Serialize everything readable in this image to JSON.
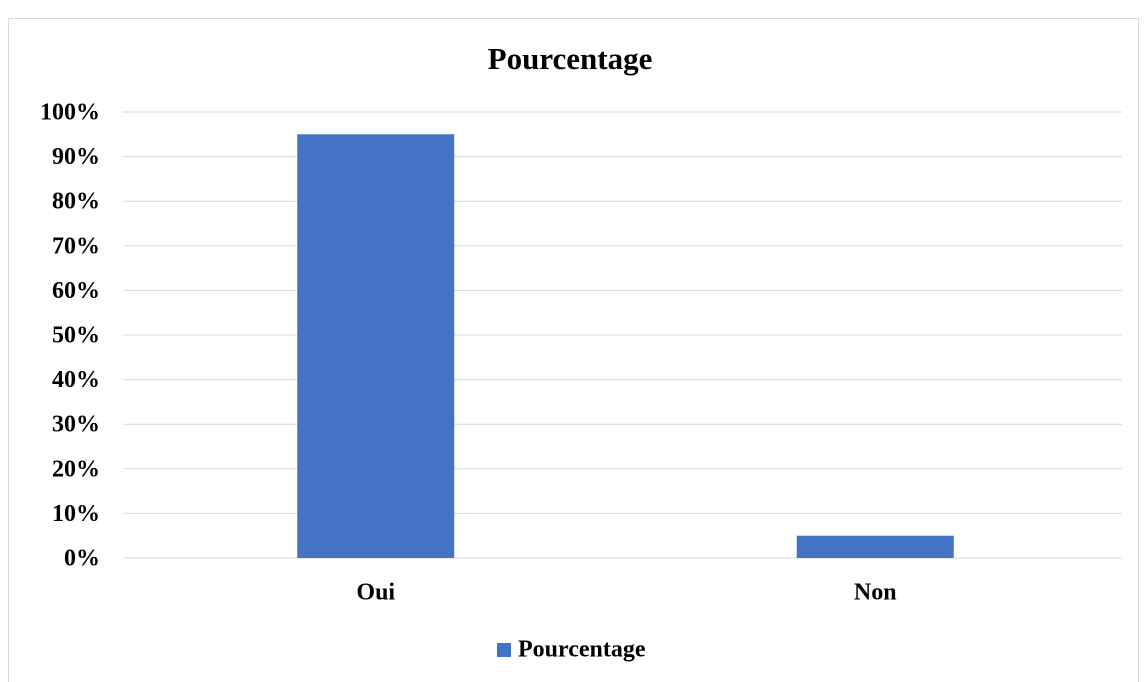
{
  "chart_data": {
    "type": "bar",
    "title": "Pourcentage",
    "categories": [
      "Oui",
      "Non"
    ],
    "series": [
      {
        "name": "Pourcentage",
        "color": "#4472c4",
        "values": [
          95,
          5
        ]
      }
    ],
    "ylim": [
      0,
      100
    ],
    "yticks": [
      {
        "value": 0,
        "label": "0%"
      },
      {
        "value": 10,
        "label": "10%"
      },
      {
        "value": 20,
        "label": "20%"
      },
      {
        "value": 30,
        "label": "30%"
      },
      {
        "value": 40,
        "label": "40%"
      },
      {
        "value": 50,
        "label": "50%"
      },
      {
        "value": 60,
        "label": "60%"
      },
      {
        "value": 70,
        "label": "70%"
      },
      {
        "value": 80,
        "label": "80%"
      },
      {
        "value": 90,
        "label": "90%"
      },
      {
        "value": 100,
        "label": "100%"
      }
    ],
    "grid": true,
    "legend": "bottom"
  }
}
